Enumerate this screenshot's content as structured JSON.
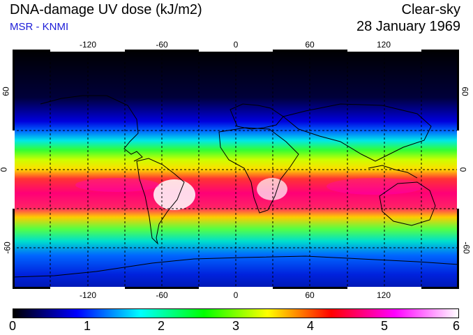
{
  "header": {
    "title": "DNA-damage UV dose (kJ/m2)",
    "subtitle": "MSR - KNMI",
    "sky_condition": "Clear-sky",
    "date": "28 January 1969"
  },
  "map": {
    "lon_ticks": [
      "-120",
      "-60",
      "0",
      "60",
      "120"
    ],
    "lat_ticks": [
      "60",
      "0",
      "-60"
    ]
  },
  "colorbar": {
    "labels": [
      "0",
      "1",
      "2",
      "3",
      "4",
      "5",
      "6"
    ],
    "colors": [
      "#000000",
      "#0000ff",
      "#00ffff",
      "#00ff00",
      "#ffff00",
      "#ff0000",
      "#ff00ff",
      "#ffffff"
    ]
  }
}
